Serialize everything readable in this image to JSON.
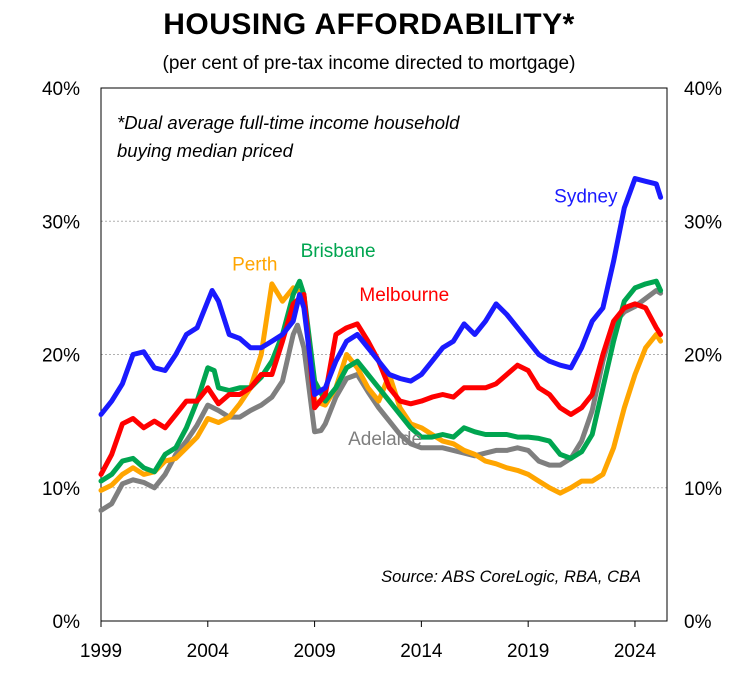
{
  "chart_data": {
    "type": "line",
    "title": "HOUSING AFFORDABILITY*",
    "subtitle": "(per cent of pre-tax income directed to mortgage)",
    "note_line1": "*Dual average full-time income household",
    "note_line2": "buying median priced",
    "source": "Source: ABS CoreLogic, RBA, CBA",
    "xlim": [
      1999,
      2025.5
    ],
    "ylim": [
      0,
      40
    ],
    "x_ticks": [
      1999,
      2004,
      2009,
      2014,
      2019,
      2024
    ],
    "x_tick_labels": [
      "1999",
      "2004",
      "2009",
      "2014",
      "2019",
      "2024"
    ],
    "y_ticks": [
      0,
      10,
      20,
      30,
      40
    ],
    "y_tick_labels": [
      "0%",
      "10%",
      "20%",
      "30%",
      "40%"
    ],
    "series": [
      {
        "name": "Adelaide",
        "color": "#7f7f7f",
        "label_pos": [
          2012.3,
          13.2
        ],
        "x": [
          1999,
          1999.5,
          2000,
          2000.5,
          2001,
          2001.5,
          2002,
          2002.5,
          2003,
          2003.5,
          2004,
          2004.5,
          2005,
          2005.5,
          2006,
          2006.5,
          2007,
          2007.5,
          2008,
          2008.2,
          2008.5,
          2009,
          2009.3,
          2009.5,
          2010,
          2010.5,
          2011,
          2011.5,
          2012,
          2012.5,
          2013,
          2013.5,
          2014,
          2014.5,
          2015,
          2015.5,
          2016,
          2016.5,
          2017,
          2017.5,
          2018,
          2018.5,
          2019,
          2019.5,
          2020,
          2020.5,
          2021,
          2021.5,
          2022,
          2022.5,
          2023,
          2023.5,
          2024,
          2024.5,
          2025,
          2025.2
        ],
        "values": [
          8.3,
          8.8,
          10.3,
          10.6,
          10.4,
          10.0,
          11.0,
          12.5,
          13.5,
          14.7,
          16.2,
          15.8,
          15.3,
          15.3,
          15.8,
          16.2,
          16.8,
          18.0,
          21.5,
          22.2,
          20.5,
          14.2,
          14.3,
          14.8,
          16.8,
          18.2,
          18.5,
          17.2,
          16.0,
          15.0,
          14.0,
          13.3,
          13.0,
          13.0,
          13.0,
          12.8,
          12.6,
          12.4,
          12.6,
          12.8,
          12.8,
          13.0,
          12.8,
          12.0,
          11.7,
          11.7,
          12.2,
          13.5,
          15.8,
          19.5,
          22.3,
          23.2,
          23.6,
          24.2,
          24.8,
          24.6
        ]
      },
      {
        "name": "Perth",
        "color": "#ffa500",
        "label_pos": [
          2006.2,
          26.3
        ],
        "x": [
          1999,
          1999.5,
          2000,
          2000.5,
          2001,
          2001.5,
          2002,
          2002.5,
          2003,
          2003.5,
          2004,
          2004.5,
          2005,
          2005.5,
          2006,
          2006.5,
          2007,
          2007.5,
          2008,
          2008.5,
          2009,
          2009.5,
          2010,
          2010.5,
          2011,
          2011.5,
          2012,
          2012.5,
          2013,
          2013.5,
          2014,
          2014.5,
          2015,
          2015.5,
          2016,
          2016.5,
          2017,
          2017.5,
          2018,
          2018.5,
          2019,
          2019.5,
          2020,
          2020.5,
          2021,
          2021.5,
          2022,
          2022.5,
          2023,
          2023.5,
          2024,
          2024.5,
          2025,
          2025.2
        ],
        "values": [
          9.8,
          10.2,
          11.0,
          11.5,
          11.0,
          11.2,
          12.0,
          12.2,
          13.0,
          13.8,
          15.2,
          14.9,
          15.3,
          16.3,
          17.5,
          20.0,
          25.3,
          24.0,
          25.0,
          24.5,
          16.5,
          16.2,
          17.5,
          20.0,
          19.0,
          17.5,
          16.5,
          18.5,
          16.0,
          14.8,
          14.5,
          14.0,
          13.5,
          13.3,
          12.8,
          12.5,
          12.0,
          11.8,
          11.5,
          11.3,
          11.0,
          10.5,
          10.0,
          9.6,
          10.0,
          10.5,
          10.5,
          11.0,
          13.0,
          16.0,
          18.5,
          20.5,
          21.5,
          21.0
        ]
      },
      {
        "name": "Brisbane",
        "color": "#00a550",
        "label_pos": [
          2010.1,
          27.3
        ],
        "x": [
          1999,
          1999.5,
          2000,
          2000.5,
          2001,
          2001.5,
          2002,
          2002.5,
          2003,
          2003.5,
          2004,
          2004.3,
          2004.5,
          2005,
          2005.5,
          2006,
          2006.5,
          2007,
          2007.5,
          2008,
          2008.3,
          2008.5,
          2009,
          2009.5,
          2010,
          2010.5,
          2011,
          2011.5,
          2012,
          2012.5,
          2013,
          2013.5,
          2014,
          2014.5,
          2015,
          2015.5,
          2016,
          2016.5,
          2017,
          2017.5,
          2018,
          2018.5,
          2019,
          2019.5,
          2020,
          2020.5,
          2021,
          2021.5,
          2022,
          2022.5,
          2023,
          2023.5,
          2024,
          2024.5,
          2025,
          2025.2
        ],
        "values": [
          10.5,
          11.0,
          12.0,
          12.2,
          11.5,
          11.2,
          12.5,
          13.0,
          14.5,
          16.5,
          19.0,
          18.8,
          17.5,
          17.3,
          17.5,
          17.5,
          18.3,
          19.5,
          21.5,
          24.5,
          25.5,
          24.5,
          18.0,
          16.5,
          17.5,
          19.0,
          19.5,
          18.5,
          17.5,
          16.5,
          15.5,
          14.5,
          13.8,
          13.8,
          14.0,
          13.8,
          14.5,
          14.2,
          14.0,
          14.0,
          14.0,
          13.8,
          13.8,
          13.7,
          13.5,
          12.5,
          12.2,
          12.7,
          14.0,
          17.5,
          21.0,
          24.0,
          25.0,
          25.3,
          25.5,
          24.8
        ]
      },
      {
        "name": "Melbourne",
        "color": "#ff0000",
        "label_pos": [
          2013.2,
          24.0
        ],
        "x": [
          1999,
          1999.5,
          2000,
          2000.5,
          2001,
          2001.5,
          2002,
          2002.5,
          2003,
          2003.5,
          2004,
          2004.5,
          2005,
          2005.5,
          2006,
          2006.5,
          2007,
          2007.5,
          2008,
          2008.5,
          2009,
          2009.5,
          2010,
          2010.5,
          2011,
          2011.5,
          2012,
          2012.5,
          2013,
          2013.5,
          2014,
          2014.5,
          2015,
          2015.5,
          2016,
          2016.5,
          2017,
          2017.5,
          2018,
          2018.5,
          2019,
          2019.5,
          2020,
          2020.5,
          2021,
          2021.5,
          2022,
          2022.5,
          2023,
          2023.5,
          2024,
          2024.5,
          2025,
          2025.2
        ],
        "values": [
          11.0,
          12.5,
          14.8,
          15.2,
          14.5,
          15.0,
          14.5,
          15.5,
          16.5,
          16.5,
          17.5,
          16.3,
          17.0,
          17.0,
          17.5,
          18.5,
          18.5,
          21.0,
          23.8,
          24.5,
          16.0,
          17.0,
          21.5,
          22.0,
          22.3,
          21.0,
          19.5,
          17.5,
          16.5,
          16.3,
          16.5,
          16.8,
          17.0,
          16.8,
          17.5,
          17.5,
          17.5,
          17.8,
          18.5,
          19.2,
          18.8,
          17.5,
          17.0,
          16.0,
          15.5,
          16.0,
          17.0,
          20.0,
          22.5,
          23.5,
          23.8,
          23.5,
          22.0,
          21.5
        ]
      },
      {
        "name": "Sydney",
        "color": "#1a1aff",
        "label_pos": [
          2021.7,
          31.4
        ],
        "x": [
          1999,
          1999.5,
          2000,
          2000.5,
          2001,
          2001.5,
          2002,
          2002.5,
          2003,
          2003.5,
          2004,
          2004.2,
          2004.5,
          2005,
          2005.5,
          2006,
          2006.5,
          2007,
          2007.5,
          2008,
          2008.3,
          2008.5,
          2009,
          2009.5,
          2010,
          2010.5,
          2011,
          2011.5,
          2012,
          2012.5,
          2013,
          2013.5,
          2014,
          2014.5,
          2015,
          2015.5,
          2016,
          2016.5,
          2017,
          2017.5,
          2018,
          2018.5,
          2019,
          2019.5,
          2020,
          2020.5,
          2021,
          2021.5,
          2022,
          2022.5,
          2023,
          2023.5,
          2024,
          2024.5,
          2025,
          2025.2
        ],
        "values": [
          15.5,
          16.5,
          17.8,
          20.0,
          20.2,
          19.0,
          18.8,
          20.0,
          21.5,
          22.0,
          24.0,
          24.8,
          24.0,
          21.5,
          21.2,
          20.5,
          20.5,
          21.0,
          21.5,
          22.5,
          24.5,
          23.5,
          17.0,
          17.5,
          19.5,
          21.0,
          21.5,
          20.5,
          19.5,
          18.5,
          18.2,
          18.0,
          18.5,
          19.5,
          20.5,
          21.0,
          22.3,
          21.5,
          22.5,
          23.8,
          23.0,
          22.0,
          21.0,
          20.0,
          19.5,
          19.2,
          19.0,
          20.5,
          22.5,
          23.5,
          27.0,
          31.0,
          33.2,
          33.0,
          32.8,
          31.8
        ]
      }
    ]
  }
}
